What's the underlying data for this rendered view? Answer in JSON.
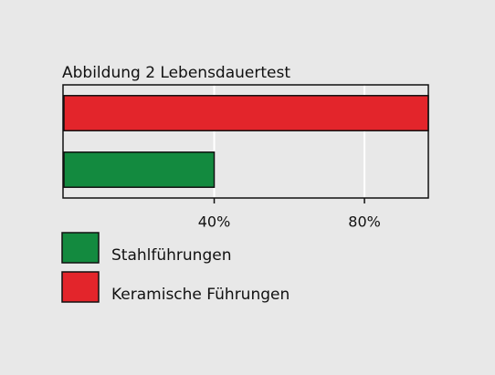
{
  "chart_data": {
    "type": "hbar",
    "title": "Abbildung 2 Lebensdauertest",
    "categories": [
      null
    ],
    "series": [
      {
        "name": "Stahlführungen",
        "color": "#138a3f",
        "values": [
          40
        ]
      },
      {
        "name": "Keramische Führungen",
        "color": "#e3252b",
        "values": [
          97
        ]
      }
    ],
    "xlim": [
      0,
      97
    ],
    "xticks": [
      {
        "value": 40,
        "label": "40%"
      },
      {
        "value": 80,
        "label": "80%"
      }
    ],
    "grid": true
  }
}
